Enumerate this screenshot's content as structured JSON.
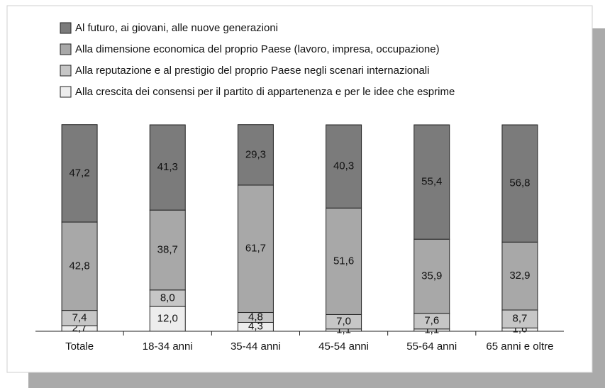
{
  "chart_data": {
    "type": "bar",
    "stacked": true,
    "categories": [
      "Totale",
      "18-34 anni",
      "35-44 anni",
      "45-54 anni",
      "55-64 anni",
      "65 anni e oltre"
    ],
    "series": [
      {
        "name": "Al futuro, ai giovani, alle nuove generazioni",
        "color": "#7b7b7b",
        "values": [
          47.2,
          41.3,
          29.3,
          40.3,
          55.4,
          56.8
        ],
        "value_labels": [
          "47,2",
          "41,3",
          "29,3",
          "40,3",
          "55,4",
          "56,8"
        ]
      },
      {
        "name": "Alla dimensione economica del proprio Paese (lavoro, impresa, occupazione)",
        "color": "#a8a8a8",
        "values": [
          42.8,
          38.7,
          61.7,
          51.6,
          35.9,
          32.9
        ],
        "value_labels": [
          "42,8",
          "38,7",
          "61,7",
          "51,6",
          "35,9",
          "32,9"
        ]
      },
      {
        "name": "Alla reputazione e al prestigio del proprio Paese negli scenari internazionali",
        "color": "#c6c6c6",
        "values": [
          7.4,
          8.0,
          4.8,
          7.0,
          7.6,
          8.7
        ],
        "value_labels": [
          "7,4",
          "8,0",
          "4,8",
          "7,0",
          "7,6",
          "8,7"
        ]
      },
      {
        "name": "Alla crescita dei consensi per il partito di appartenenza e per le idee che esprime",
        "color": "#ededed",
        "values": [
          2.7,
          12.0,
          4.3,
          1.1,
          1.1,
          1.6
        ],
        "value_labels": [
          "2,7",
          "12,0",
          "4,3",
          "1,1",
          "1,1",
          "1,6"
        ]
      }
    ]
  }
}
